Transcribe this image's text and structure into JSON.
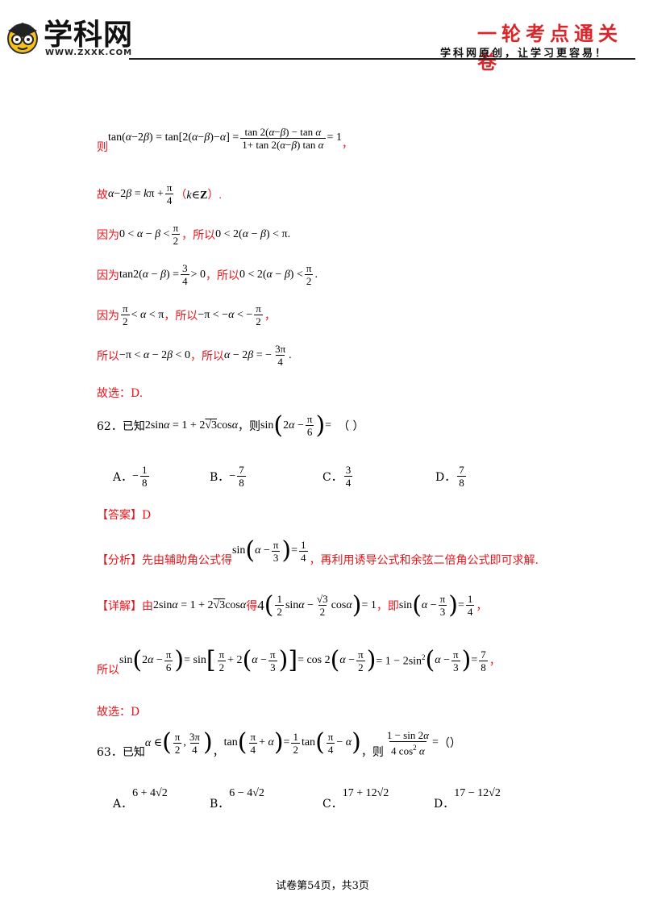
{
  "header": {
    "logo_text": "学科网",
    "logo_url": "WWW.ZXXK.COM",
    "title": "一轮考点通关卷",
    "subtitle": "学科网原创，让学习更容易！"
  },
  "solution61": {
    "l1_prefix": "则",
    "l2_prefix": "故",
    "l3_prefix": "因为",
    "l3_mid": "，所以",
    "l4_prefix": "因为",
    "l4_mid": "，所以",
    "l5_prefix": "因为",
    "l5_mid": "，所以",
    "l6_prefix": "所以",
    "l6_mid": "，所以",
    "answer": "故选：D."
  },
  "q62": {
    "number": "62．已知",
    "then": "，则",
    "blank": "（    ）",
    "options": [
      {
        "label": "A．",
        "sign": "−",
        "num": "1",
        "den": "8"
      },
      {
        "label": "B．",
        "sign": "−",
        "num": "7",
        "den": "8"
      },
      {
        "label": "C．",
        "sign": "",
        "num": "3",
        "den": "4"
      },
      {
        "label": "D．",
        "sign": "",
        "num": "7",
        "den": "8"
      }
    ],
    "answer_tag": "【答案】",
    "answer_value": "D",
    "analysis_tag": "【分析】",
    "analysis_pre": "先由辅助角公式得",
    "analysis_post": "，再利用诱导公式和余弦二倍角公式即可求解.",
    "detail_tag": "【详解】",
    "detail_pre": "由",
    "detail_mid1": "得",
    "detail_mid2": "，即",
    "detail_end": "，",
    "so": "所以",
    "choose": "故选：D"
  },
  "q63": {
    "number": "63．已知",
    "comma": "，",
    "then": "，则",
    "blank": "（）",
    "options": [
      {
        "label": "A．",
        "expr": "6 + 4√2"
      },
      {
        "label": "B．",
        "expr": "6 − 4√2"
      },
      {
        "label": "C．",
        "expr": "17 + 12√2"
      },
      {
        "label": "D．",
        "expr": "17 − 12√2"
      }
    ]
  },
  "footer": "试卷第54页，共3页"
}
